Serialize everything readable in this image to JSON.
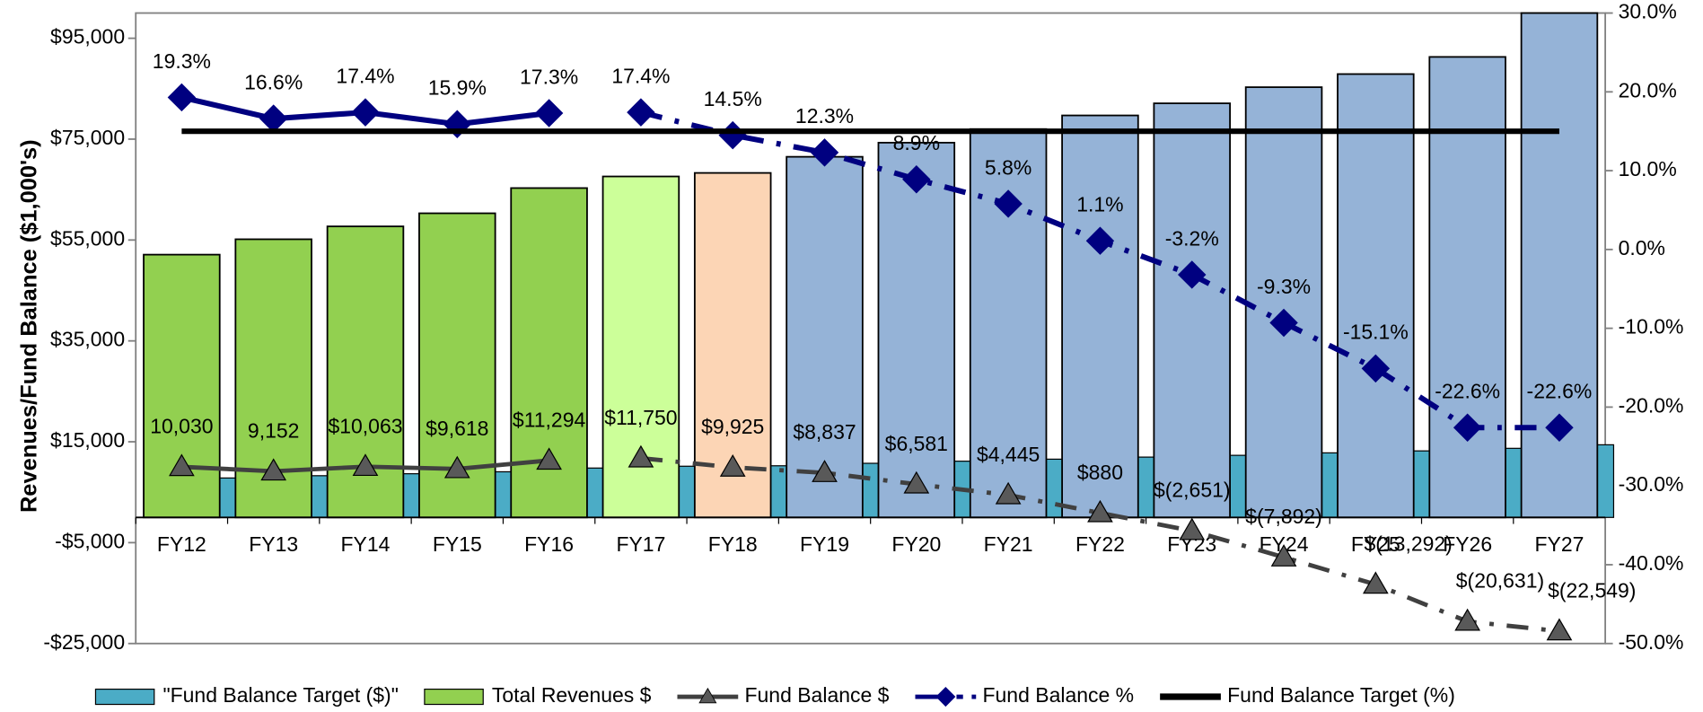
{
  "chart_data": {
    "type": "bar",
    "y_label": "Revenues/Fund Balance ($1,000's)",
    "categories": [
      "FY12",
      "FY13",
      "FY14",
      "FY15",
      "FY16",
      "FY17",
      "FY18",
      "FY19",
      "FY20",
      "FY21",
      "FY22",
      "FY23",
      "FY24",
      "FY25",
      "FY26",
      "FY27"
    ],
    "ylim": [
      -25000,
      100000
    ],
    "yticks": [
      {
        "value": -25000,
        "label": "-$25,000"
      },
      {
        "value": -5000,
        "label": "-$5,000"
      },
      {
        "value": 15000,
        "label": "$15,000"
      },
      {
        "value": 35000,
        "label": "$35,000"
      },
      {
        "value": 55000,
        "label": "$55,000"
      },
      {
        "value": 75000,
        "label": "$75,000"
      },
      {
        "value": 95000,
        "label": "$95,000"
      }
    ],
    "y2lim": [
      -50,
      30
    ],
    "y2ticks": [
      {
        "value": -50,
        "label": "-50.0%"
      },
      {
        "value": -40,
        "label": "-40.0%"
      },
      {
        "value": -30,
        "label": "-30.0%"
      },
      {
        "value": -20,
        "label": "-20.0%"
      },
      {
        "value": -10,
        "label": "-10.0%"
      },
      {
        "value": 0,
        "label": "0.0%"
      },
      {
        "value": 10,
        "label": "10.0%"
      },
      {
        "value": 20,
        "label": "20.0%"
      },
      {
        "value": 30,
        "label": "30.0%"
      }
    ],
    "series": [
      {
        "name": "\"Fund Balance Target ($)\"",
        "type": "bar",
        "color": "#4bacc6",
        "values": [
          7820,
          8270,
          8660,
          9050,
          9790,
          10150,
          10240,
          10730,
          11150,
          11550,
          11960,
          12310,
          12800,
          13190,
          13700,
          14400
        ]
      },
      {
        "name": "Total Revenues $",
        "type": "bar",
        "color": "#92d050",
        "colors": [
          "#92d050",
          "#92d050",
          "#92d050",
          "#92d050",
          "#92d050",
          "#ccff99",
          "#fcd5b5",
          "#95b3d7",
          "#95b3d7",
          "#95b3d7",
          "#95b3d7",
          "#95b3d7",
          "#95b3d7",
          "#95b3d7",
          "#95b3d7",
          "#95b3d7"
        ],
        "values": [
          52100,
          55150,
          57700,
          60300,
          65300,
          67600,
          68300,
          71500,
          74300,
          77000,
          79700,
          82100,
          85300,
          87900,
          91300,
          100000
        ]
      },
      {
        "name": "Fund Balance $",
        "type": "line",
        "color": "#404040",
        "marker": "triangle",
        "values": [
          10030,
          9152,
          10063,
          9618,
          11294,
          11750,
          9925,
          8837,
          6581,
          4445,
          880,
          -2651,
          -7892,
          -13292,
          -20631,
          -22549
        ],
        "value_labels": [
          "10,030",
          "9,152",
          "$10,063",
          "$9,618",
          "$11,294",
          "$11,750",
          "$9,925",
          "$8,837",
          "$6,581",
          "$4,445",
          "$880",
          "$(2,651)",
          "$(7,892)",
          "$(13,292)",
          "$(20,631)",
          "$(22,549)"
        ]
      },
      {
        "name": "Fund Balance %",
        "type": "line",
        "axis": "y2",
        "color": "#000080",
        "marker": "diamond",
        "values": [
          19.3,
          16.6,
          17.4,
          15.9,
          17.3,
          17.4,
          14.5,
          12.3,
          8.9,
          5.8,
          1.1,
          -3.2,
          -9.3,
          -15.1,
          -22.6,
          -22.6
        ],
        "value_labels": [
          "19.3%",
          "16.6%",
          "17.4%",
          "15.9%",
          "17.3%",
          "17.4%",
          "14.5%",
          "12.3%",
          "8.9%",
          "5.8%",
          "1.1%",
          "-3.2%",
          "-9.3%",
          "-15.1%",
          "-22.6%",
          "-22.6%"
        ]
      },
      {
        "name": "Fund Balance Target (%)",
        "type": "line",
        "axis": "y2",
        "color": "#000000",
        "marker": "none",
        "values": [
          15,
          15,
          15,
          15,
          15,
          15,
          15,
          15,
          15,
          15,
          15,
          15,
          15,
          15,
          15,
          15
        ]
      }
    ],
    "legend": "bottom"
  }
}
